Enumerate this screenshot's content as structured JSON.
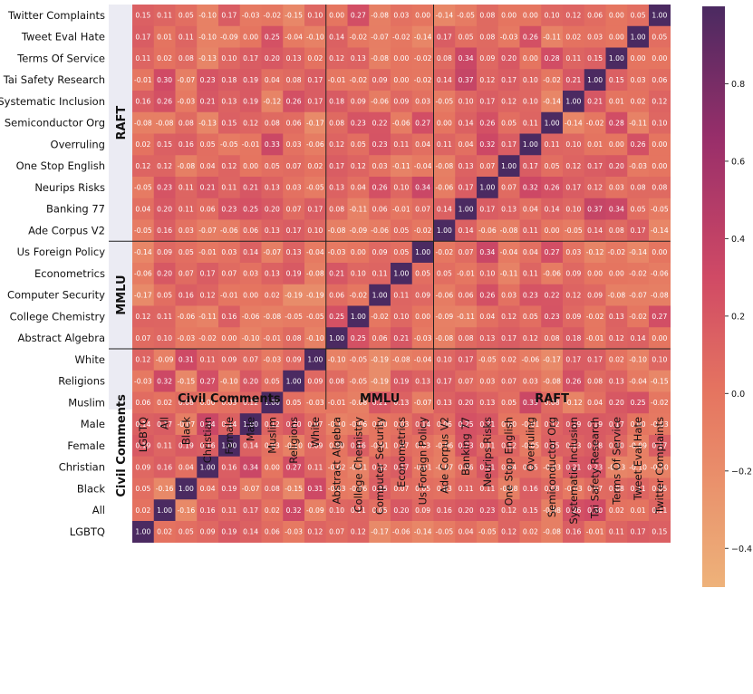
{
  "chart_data": {
    "type": "heatmap",
    "labels": [
      "LGBTQ",
      "All",
      "Black",
      "Christian",
      "Female",
      "Male",
      "Muslim",
      "Religions",
      "White",
      "Abstract Algebra",
      "College Chemistry",
      "Computer Security",
      "Econometrics",
      "Us Foreign Policy",
      "Ade Corpus V2",
      "Banking 77",
      "Neurips Risks",
      "One Stop English",
      "Overruling",
      "Semiconductor Org",
      "Systematic Inclusion",
      "Tai Safety Research",
      "Terms Of Service",
      "Tweet Eval Hate",
      "Twitter Complaints"
    ],
    "groups": [
      {
        "name": "Civil Comments",
        "count": 9
      },
      {
        "name": "MMLU",
        "count": 5
      },
      {
        "name": "RAFT",
        "count": 11
      }
    ],
    "row_order_top_to_bottom": [
      "Twitter Complaints",
      "Tweet Eval Hate",
      "Terms Of Service",
      "Tai Safety Research",
      "Systematic Inclusion",
      "Semiconductor Org",
      "Overruling",
      "One Stop English",
      "Neurips Risks",
      "Banking 77",
      "Ade Corpus V2",
      "Us Foreign Policy",
      "Econometrics",
      "Computer Security",
      "College Chemistry",
      "Abstract Algebra",
      "White",
      "Religions",
      "Muslim",
      "Male",
      "Female",
      "Christian",
      "Black",
      "All",
      "LGBTQ"
    ],
    "values": [
      [
        0.15,
        0.11,
        0.05,
        -0.1,
        0.17,
        -0.03,
        -0.02,
        -0.15,
        0.1,
        -0.0,
        0.27,
        -0.08,
        0.03,
        -0.0,
        -0.14,
        -0.05,
        0.08,
        -0.0,
        0.0,
        0.1,
        0.12,
        0.06,
        0.0,
        0.05,
        1.0
      ],
      [
        0.17,
        0.01,
        0.11,
        -0.1,
        -0.09,
        0.0,
        0.25,
        -0.04,
        -0.1,
        0.14,
        -0.02,
        -0.07,
        -0.02,
        -0.14,
        0.17,
        0.05,
        0.08,
        -0.03,
        0.26,
        -0.11,
        0.02,
        0.03,
        0.0,
        1.0,
        0.05
      ],
      [
        0.11,
        0.02,
        0.08,
        -0.13,
        0.1,
        0.17,
        0.2,
        0.13,
        0.02,
        0.12,
        0.13,
        -0.08,
        0.0,
        -0.02,
        0.08,
        0.34,
        0.09,
        0.2,
        0.0,
        0.28,
        0.11,
        0.15,
        1.0,
        0.0,
        0.0
      ],
      [
        -0.01,
        0.3,
        -0.07,
        0.23,
        0.18,
        0.19,
        0.04,
        0.08,
        0.17,
        -0.01,
        -0.02,
        0.09,
        -0.0,
        -0.02,
        0.14,
        0.37,
        0.12,
        0.17,
        0.1,
        -0.02,
        0.21,
        1.0,
        0.15,
        0.03,
        0.06
      ],
      [
        0.16,
        0.26,
        -0.03,
        0.21,
        0.13,
        0.19,
        -0.12,
        0.26,
        0.17,
        0.18,
        0.09,
        -0.06,
        0.09,
        0.03,
        -0.05,
        0.1,
        0.17,
        0.12,
        0.1,
        -0.14,
        1.0,
        0.21,
        0.01,
        0.02,
        0.12
      ],
      [
        -0.08,
        -0.08,
        0.08,
        -0.13,
        0.15,
        0.12,
        0.08,
        0.06,
        -0.17,
        0.08,
        0.23,
        0.22,
        -0.06,
        0.27,
        0.0,
        0.14,
        0.26,
        0.05,
        0.11,
        1.0,
        -0.14,
        -0.02,
        0.28,
        -0.11,
        0.1
      ],
      [
        0.02,
        0.15,
        0.16,
        0.05,
        -0.05,
        -0.01,
        0.33,
        0.03,
        -0.06,
        0.12,
        0.05,
        0.23,
        0.11,
        0.04,
        0.11,
        0.04,
        0.32,
        0.17,
        1.0,
        0.11,
        0.1,
        0.01,
        0.0,
        0.26,
        0.0
      ],
      [
        0.12,
        0.12,
        -0.08,
        0.04,
        0.12,
        -0.0,
        0.05,
        0.07,
        0.02,
        0.17,
        0.12,
        0.03,
        -0.11,
        -0.04,
        -0.08,
        0.13,
        0.07,
        1.0,
        0.17,
        0.05,
        0.12,
        0.17,
        0.2,
        -0.03,
        -0.0
      ],
      [
        -0.05,
        0.23,
        0.11,
        0.21,
        0.11,
        0.21,
        0.13,
        0.03,
        -0.05,
        0.13,
        0.04,
        0.26,
        0.1,
        0.34,
        -0.06,
        0.17,
        1.0,
        0.07,
        0.32,
        0.26,
        0.17,
        0.12,
        0.03,
        0.08,
        0.08
      ],
      [
        0.04,
        0.2,
        0.11,
        0.06,
        0.23,
        0.25,
        0.2,
        0.07,
        0.17,
        0.08,
        -0.11,
        0.06,
        -0.01,
        0.07,
        0.14,
        1.0,
        0.17,
        0.13,
        0.04,
        0.14,
        0.1,
        0.37,
        0.34,
        0.05,
        -0.05
      ],
      [
        -0.05,
        0.16,
        0.03,
        -0.07,
        -0.06,
        0.06,
        0.13,
        0.17,
        0.1,
        -0.08,
        -0.09,
        -0.06,
        0.05,
        -0.02,
        1.0,
        0.14,
        -0.06,
        -0.08,
        0.11,
        0.0,
        -0.05,
        0.14,
        0.08,
        0.17,
        -0.14
      ],
      [
        -0.14,
        0.09,
        0.05,
        -0.01,
        0.03,
        0.14,
        -0.07,
        0.13,
        -0.04,
        -0.03,
        0.0,
        0.09,
        0.05,
        1.0,
        -0.02,
        0.07,
        0.34,
        -0.04,
        0.04,
        0.27,
        0.03,
        -0.12,
        -0.02,
        -0.14,
        -0.0
      ],
      [
        -0.06,
        0.2,
        0.07,
        0.17,
        0.07,
        0.03,
        0.13,
        0.19,
        -0.08,
        0.21,
        0.1,
        0.11,
        1.0,
        0.05,
        0.05,
        -0.01,
        0.1,
        -0.11,
        0.11,
        -0.06,
        0.09,
        -0.0,
        -0.0,
        -0.02,
        -0.06
      ],
      [
        -0.17,
        0.05,
        0.16,
        0.12,
        -0.01,
        -0.0,
        0.02,
        -0.19,
        -0.19,
        0.06,
        -0.02,
        1.0,
        0.11,
        0.09,
        -0.06,
        0.06,
        0.26,
        0.03,
        0.23,
        0.22,
        0.12,
        0.09,
        -0.08,
        -0.07,
        -0.08
      ],
      [
        0.12,
        0.11,
        -0.06,
        -0.11,
        0.16,
        -0.06,
        -0.08,
        -0.05,
        -0.05,
        0.25,
        1.0,
        -0.02,
        0.1,
        0.0,
        -0.09,
        -0.11,
        0.04,
        0.12,
        0.05,
        0.23,
        0.09,
        -0.02,
        0.13,
        -0.02,
        0.27
      ],
      [
        0.07,
        0.1,
        -0.03,
        -0.02,
        -0.0,
        -0.1,
        -0.01,
        0.08,
        -0.1,
        1.0,
        0.25,
        0.06,
        0.21,
        -0.03,
        -0.08,
        0.08,
        0.13,
        0.17,
        0.12,
        0.08,
        0.18,
        -0.01,
        0.12,
        0.14,
        -0.0
      ],
      [
        0.12,
        -0.09,
        0.31,
        0.11,
        0.09,
        0.07,
        -0.03,
        0.09,
        1.0,
        -0.1,
        -0.05,
        -0.19,
        -0.08,
        -0.04,
        0.1,
        0.17,
        -0.05,
        0.02,
        -0.06,
        -0.17,
        0.17,
        0.17,
        0.02,
        -0.1,
        0.1
      ],
      [
        -0.03,
        0.32,
        -0.15,
        0.27,
        -0.1,
        0.2,
        0.05,
        1.0,
        0.09,
        0.08,
        -0.05,
        -0.19,
        0.19,
        0.13,
        0.17,
        0.07,
        0.03,
        0.07,
        0.03,
        -0.08,
        0.26,
        0.08,
        0.13,
        -0.04,
        -0.15
      ],
      [
        0.06,
        0.02,
        0.08,
        -0.0,
        0.03,
        0.12,
        1.0,
        0.05,
        -0.03,
        -0.01,
        -0.08,
        0.21,
        0.13,
        -0.07,
        0.13,
        0.2,
        0.13,
        0.05,
        0.33,
        0.08,
        -0.12,
        0.04,
        0.2,
        0.25,
        -0.02
      ],
      [
        0.14,
        0.17,
        -0.07,
        0.34,
        0.14,
        1.0,
        0.12,
        0.2,
        0.07,
        -0.1,
        -0.06,
        -0.0,
        0.03,
        0.14,
        0.06,
        0.25,
        0.21,
        -0.0,
        -0.01,
        0.12,
        0.19,
        0.19,
        0.17,
        -0.0,
        -0.03
      ],
      [
        0.19,
        0.11,
        0.19,
        0.16,
        1.0,
        0.14,
        0.03,
        -0.1,
        0.09,
        -0.0,
        0.16,
        -0.01,
        0.07,
        0.03,
        -0.06,
        0.23,
        0.11,
        0.12,
        -0.05,
        0.15,
        0.13,
        0.18,
        0.1,
        -0.09,
        0.17
      ],
      [
        0.09,
        0.16,
        0.04,
        1.0,
        0.16,
        0.34,
        -0.0,
        0.27,
        0.11,
        -0.02,
        -0.11,
        0.12,
        0.17,
        -0.01,
        -0.07,
        0.06,
        0.21,
        0.04,
        0.05,
        -0.03,
        0.21,
        0.23,
        -0.13,
        -0.1,
        -0.1
      ],
      [
        0.05,
        -0.16,
        1.0,
        0.04,
        0.19,
        -0.07,
        0.08,
        -0.15,
        0.31,
        -0.03,
        -0.06,
        0.16,
        0.07,
        0.05,
        0.03,
        0.11,
        0.11,
        -0.08,
        0.16,
        0.08,
        -0.03,
        0.07,
        0.08,
        0.11,
        0.05
      ],
      [
        0.02,
        1.0,
        -0.16,
        0.16,
        0.11,
        0.17,
        0.02,
        0.32,
        -0.09,
        0.1,
        0.11,
        0.05,
        0.2,
        0.09,
        0.16,
        0.2,
        0.23,
        0.12,
        0.15,
        -0.08,
        0.26,
        0.3,
        0.02,
        0.01,
        0.11
      ],
      [
        1.0,
        0.02,
        0.05,
        0.09,
        0.19,
        0.14,
        0.06,
        -0.03,
        0.12,
        0.07,
        0.12,
        -0.17,
        -0.06,
        -0.14,
        -0.05,
        0.04,
        -0.05,
        0.12,
        0.02,
        -0.08,
        0.16,
        -0.01,
        0.11,
        0.17,
        0.15
      ]
    ],
    "colorbar": {
      "min": -0.5,
      "max": 1.0,
      "ticks": [
        0.8,
        0.6,
        0.4,
        0.2,
        0.0,
        -0.2,
        -0.4
      ],
      "tick_labels": [
        "0.8",
        "0.6",
        "0.4",
        "0.2",
        "0.0",
        "−0.2",
        "−0.4"
      ]
    },
    "colors": {
      "low": "#eeb27a",
      "mid_low": "#e57560",
      "mid": "#d04a65",
      "mid_high": "#9a2f6a",
      "high": "#4b2a61",
      "band": "#ebebf3",
      "divider": "#222222"
    }
  }
}
